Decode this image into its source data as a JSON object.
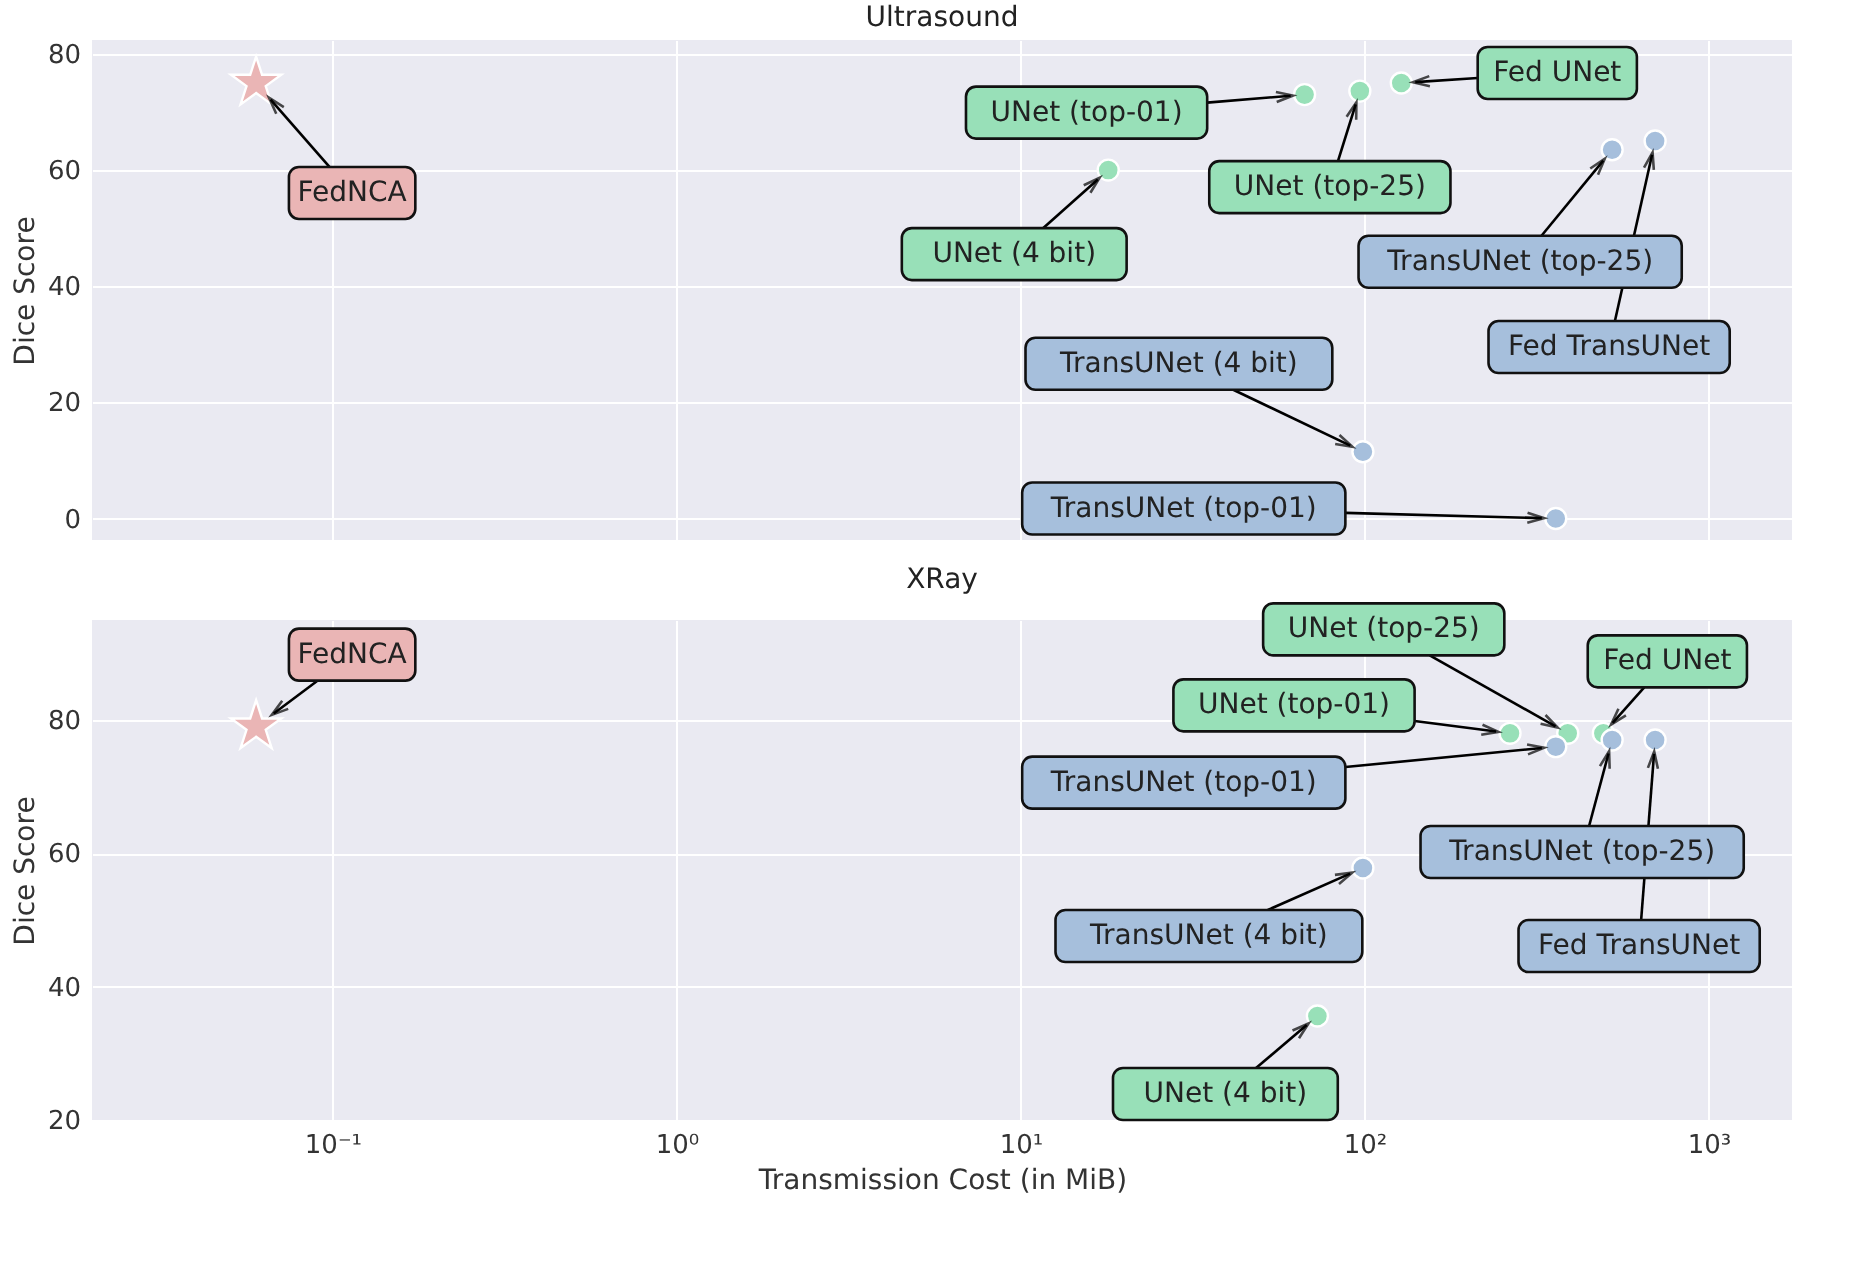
{
  "chart_data": [
    {
      "type": "scatter",
      "title": "Ultrasound",
      "ylabel": "Dice Score",
      "log": "x",
      "grid": true,
      "tick_labels": "y",
      "xlim": [
        0.02,
        1750
      ],
      "xticks": [
        {
          "value": 0.1,
          "label": null
        },
        {
          "value": 1,
          "label": null
        },
        {
          "value": 10,
          "label": null
        },
        {
          "value": 100,
          "label": null
        },
        {
          "value": 1000,
          "label": null
        }
      ],
      "ylim": [
        -3.7,
        82.4
      ],
      "yticks": [
        0,
        20,
        40,
        60,
        80
      ],
      "series": [
        {
          "name": "FedNCA",
          "color": "#eab5b5",
          "marker": "star",
          "x": [
            0.06
          ],
          "values": [
            75
          ]
        },
        {
          "name": "UNet (top-01)",
          "color": "#98e0b8",
          "marker": "circle",
          "x": [
            67
          ],
          "values": [
            73
          ]
        },
        {
          "name": "UNet (top-25)",
          "color": "#98e0b8",
          "marker": "circle",
          "x": [
            97
          ],
          "values": [
            73.6
          ]
        },
        {
          "name": "Fed UNet",
          "color": "#98e0b8",
          "marker": "circle",
          "x": [
            128
          ],
          "values": [
            75
          ]
        },
        {
          "name": "UNet (4 bit)",
          "color": "#98e0b8",
          "marker": "circle",
          "x": [
            18
          ],
          "values": [
            60
          ]
        },
        {
          "name": "TransUNet (top-25)",
          "color": "#a6bfdc",
          "marker": "circle",
          "x": [
            525
          ],
          "values": [
            63.5
          ]
        },
        {
          "name": "Fed TransUNet",
          "color": "#a6bfdc",
          "marker": "circle",
          "x": [
            700
          ],
          "values": [
            65
          ]
        },
        {
          "name": "TransUNet (4 bit)",
          "color": "#a6bfdc",
          "marker": "circle",
          "x": [
            99
          ],
          "values": [
            11.5
          ]
        },
        {
          "name": "TransUNet (top-01)",
          "color": "#a6bfdc",
          "marker": "circle",
          "x": [
            360
          ],
          "values": [
            0
          ]
        }
      ]
    },
    {
      "type": "scatter",
      "title": "XRay",
      "xlabel": "Transmission Cost (in MiB)",
      "ylabel": "Dice Score",
      "log": "x",
      "grid": true,
      "xlim": [
        0.02,
        1750
      ],
      "xticks": [
        {
          "value": 0.1,
          "label": "10⁻¹"
        },
        {
          "value": 1,
          "label": "10⁰"
        },
        {
          "value": 10,
          "label": "10¹"
        },
        {
          "value": 100,
          "label": "10²"
        },
        {
          "value": 1000,
          "label": "10³"
        }
      ],
      "ylim": [
        20,
        95
      ],
      "yticks": [
        20,
        40,
        60,
        80
      ],
      "series": [
        {
          "name": "FedNCA",
          "color": "#eab5b5",
          "marker": "star",
          "x": [
            0.06
          ],
          "values": [
            79
          ]
        },
        {
          "name": "UNet (top-25)",
          "color": "#98e0b8",
          "marker": "circle",
          "x": [
            390
          ],
          "values": [
            78
          ]
        },
        {
          "name": "UNet (top-01)",
          "color": "#98e0b8",
          "marker": "circle",
          "x": [
            265
          ],
          "values": [
            78
          ]
        },
        {
          "name": "Fed UNet",
          "color": "#98e0b8",
          "marker": "circle",
          "x": [
            495
          ],
          "values": [
            78
          ]
        },
        {
          "name": "TransUNet (top-01)",
          "color": "#a6bfdc",
          "marker": "circle",
          "x": [
            360
          ],
          "values": [
            76
          ]
        },
        {
          "name": "TransUNet (top-25)",
          "color": "#a6bfdc",
          "marker": "circle",
          "x": [
            525
          ],
          "values": [
            77
          ]
        },
        {
          "name": "Fed TransUNet",
          "color": "#a6bfdc",
          "marker": "circle",
          "x": [
            700
          ],
          "values": [
            77
          ]
        },
        {
          "name": "TransUNet (4 bit)",
          "color": "#a6bfdc",
          "marker": "circle",
          "x": [
            99
          ],
          "values": [
            57.8
          ]
        },
        {
          "name": "UNet (4 bit)",
          "color": "#98e0b8",
          "marker": "circle",
          "x": [
            73
          ],
          "values": [
            35.6
          ]
        }
      ]
    }
  ]
}
